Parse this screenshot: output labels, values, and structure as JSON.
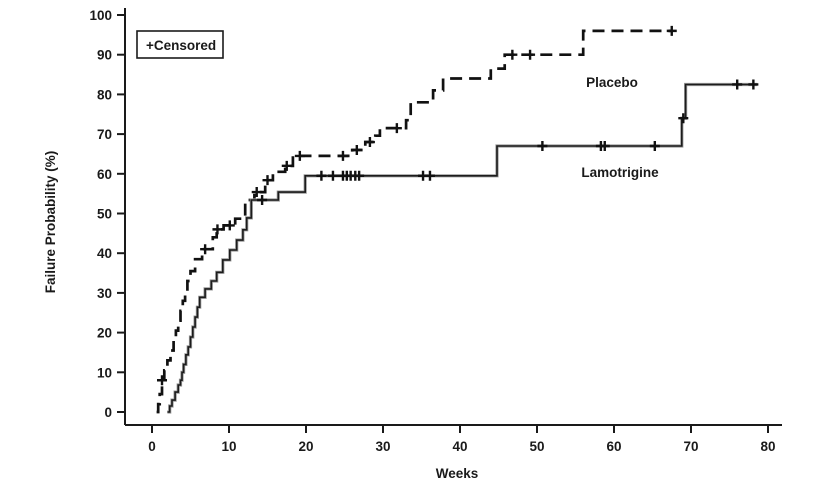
{
  "figure": {
    "background_color": "#ffffff",
    "axis_color": "#1a1a1a"
  },
  "chart_data": {
    "type": "line",
    "subtype": "kaplan-meier-step-curve",
    "title": "",
    "xlabel": "Weeks",
    "ylabel": "Failure Probability (%)",
    "xlim": [
      0,
      80
    ],
    "ylim": [
      0,
      100
    ],
    "x_ticks": [
      0,
      10,
      20,
      30,
      40,
      50,
      60,
      70,
      80
    ],
    "y_ticks": [
      0,
      10,
      20,
      30,
      40,
      50,
      60,
      70,
      80,
      90,
      100
    ],
    "grid": false,
    "legend_label": "+Censored",
    "censor_marker": "plus-cross",
    "series": [
      {
        "name": "Placebo",
        "style": "dashed",
        "color": "#111111",
        "label_anchor_x_weeks": 59.8,
        "label_anchor_y_pct": 81,
        "points": [
          [
            0.6,
            0
          ],
          [
            0.8,
            2
          ],
          [
            1.0,
            4.5
          ],
          [
            1.3,
            8
          ],
          [
            1.6,
            10.5
          ],
          [
            2.0,
            13
          ],
          [
            2.4,
            15.5
          ],
          [
            2.8,
            18
          ],
          [
            3.1,
            20.5
          ],
          [
            3.4,
            23
          ],
          [
            3.7,
            25.5
          ],
          [
            4.0,
            28
          ],
          [
            4.3,
            30.5
          ],
          [
            4.6,
            33
          ],
          [
            5.0,
            35.5
          ],
          [
            5.6,
            38.5
          ],
          [
            6.5,
            41
          ],
          [
            7.9,
            44
          ],
          [
            8.4,
            46
          ],
          [
            9.3,
            47
          ],
          [
            10.8,
            48.7
          ],
          [
            12.1,
            53.4
          ],
          [
            13.3,
            55.4
          ],
          [
            14.7,
            58.4
          ],
          [
            15.7,
            60.5
          ],
          [
            17.3,
            62
          ],
          [
            18.3,
            64.5
          ],
          [
            26.0,
            66
          ],
          [
            27.7,
            68
          ],
          [
            29.0,
            69.6
          ],
          [
            29.6,
            71.5
          ],
          [
            33.0,
            73.5
          ],
          [
            33.6,
            78
          ],
          [
            36.5,
            81
          ],
          [
            37.8,
            84
          ],
          [
            44.0,
            86.5
          ],
          [
            45.8,
            90
          ],
          [
            56.0,
            96
          ]
        ],
        "end_week": 67.5,
        "censored": [
          [
            1.3,
            8
          ],
          [
            6.9,
            41
          ],
          [
            8.5,
            46
          ],
          [
            10.1,
            47
          ],
          [
            13.6,
            55.4
          ],
          [
            15.0,
            58.4
          ],
          [
            17.5,
            62
          ],
          [
            19.2,
            64.5
          ],
          [
            24.8,
            64.5
          ],
          [
            26.6,
            66
          ],
          [
            28.3,
            68
          ],
          [
            31.8,
            71.5
          ],
          [
            46.8,
            90
          ],
          [
            49.1,
            90
          ],
          [
            67.5,
            96
          ]
        ]
      },
      {
        "name": "Lamotrigine",
        "style": "solid",
        "color": "#1c1c1c",
        "label_anchor_x_weeks": 60.8,
        "label_anchor_y_pct": 58,
        "points": [
          [
            2.0,
            0
          ],
          [
            2.3,
            1.5
          ],
          [
            2.6,
            3
          ],
          [
            3.0,
            5
          ],
          [
            3.4,
            6.8
          ],
          [
            3.7,
            8
          ],
          [
            3.9,
            10
          ],
          [
            4.1,
            12
          ],
          [
            4.4,
            14.4
          ],
          [
            4.7,
            16.4
          ],
          [
            5.0,
            18.9
          ],
          [
            5.3,
            21.4
          ],
          [
            5.6,
            23.9
          ],
          [
            5.9,
            26.4
          ],
          [
            6.2,
            28.9
          ],
          [
            6.9,
            31
          ],
          [
            7.7,
            33
          ],
          [
            8.4,
            35.2
          ],
          [
            9.2,
            38.3
          ],
          [
            10.1,
            40.8
          ],
          [
            11.0,
            43.3
          ],
          [
            11.8,
            45.9
          ],
          [
            12.3,
            48.9
          ],
          [
            12.9,
            53.4
          ],
          [
            16.4,
            55.4
          ],
          [
            19.9,
            59.5
          ],
          [
            44.8,
            67
          ],
          [
            68.8,
            74
          ],
          [
            69.3,
            82.5
          ]
        ],
        "end_week": 78.6,
        "censored": [
          [
            14.3,
            53.4
          ],
          [
            22.0,
            59.5
          ],
          [
            23.5,
            59.5
          ],
          [
            24.8,
            59.5
          ],
          [
            25.3,
            59.5
          ],
          [
            25.8,
            59.5
          ],
          [
            26.4,
            59.5
          ],
          [
            26.9,
            59.5
          ],
          [
            35.2,
            59.5
          ],
          [
            36.1,
            59.5
          ],
          [
            50.7,
            67
          ],
          [
            58.3,
            67
          ],
          [
            58.8,
            67
          ],
          [
            65.3,
            67
          ],
          [
            69.0,
            74
          ],
          [
            76.0,
            82.5
          ],
          [
            78.1,
            82.5
          ]
        ]
      }
    ]
  }
}
